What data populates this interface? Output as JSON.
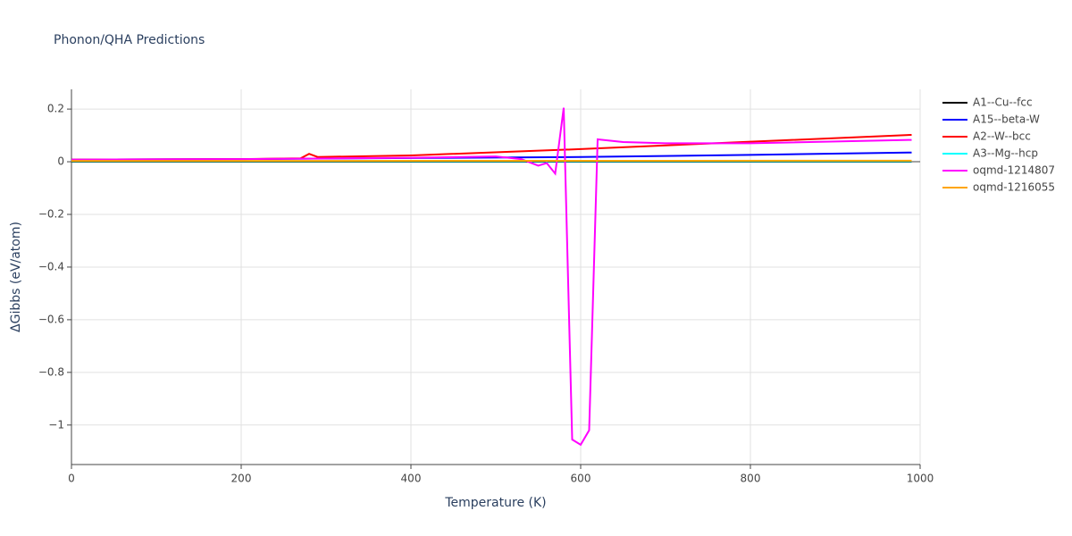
{
  "chart_data": {
    "type": "line",
    "title": "Phonon/QHA Predictions",
    "x_label": "Temperature (K)",
    "y_label": "ΔGibbs (eV/atom)",
    "xlim": [
      0,
      1000
    ],
    "ylim": [
      -1.15,
      0.275
    ],
    "xticks": [
      0,
      200,
      400,
      600,
      800,
      1000
    ],
    "yticks": [
      {
        "value": -1,
        "label": "−1"
      },
      {
        "value": -0.8,
        "label": "−0.8"
      },
      {
        "value": -0.6,
        "label": "−0.6"
      },
      {
        "value": -0.4,
        "label": "−0.4"
      },
      {
        "value": -0.2,
        "label": "−0.2"
      },
      0,
      0.2
    ],
    "grid": true,
    "legend": "right",
    "series": [
      {
        "name": "A1--Cu--fcc",
        "color": "#000000",
        "x": [
          0,
          990
        ],
        "values": [
          0,
          0
        ]
      },
      {
        "name": "A15--beta-W",
        "color": "#0000ff",
        "x": [
          0,
          200,
          400,
          600,
          800,
          990
        ],
        "values": [
          0.008,
          0.01,
          0.014,
          0.018,
          0.026,
          0.035
        ]
      },
      {
        "name": "A2--W--bcc",
        "color": "#ff0000",
        "x": [
          0,
          200,
          270,
          280,
          290,
          400,
          600,
          800,
          990
        ],
        "values": [
          0.008,
          0.01,
          0.013,
          0.03,
          0.018,
          0.024,
          0.048,
          0.076,
          0.102
        ]
      },
      {
        "name": "A3--Mg--hcp",
        "color": "#00ffff",
        "x": [
          0,
          990
        ],
        "values": [
          0.002,
          0.002
        ]
      },
      {
        "name": "oqmd-1214807",
        "color": "#ff00ff",
        "x": [
          0,
          200,
          400,
          500,
          530,
          550,
          560,
          570,
          580,
          590,
          600,
          610,
          620,
          650,
          700,
          800,
          990
        ],
        "values": [
          0.008,
          0.01,
          0.015,
          0.02,
          0.01,
          -0.015,
          -0.005,
          -0.045,
          0.205,
          -1.055,
          -1.075,
          -1.02,
          0.085,
          0.075,
          0.07,
          0.07,
          0.083
        ]
      },
      {
        "name": "oqmd-1216055",
        "color": "#ffa500",
        "x": [
          0,
          990
        ],
        "values": [
          0.003,
          0.004
        ]
      }
    ]
  }
}
